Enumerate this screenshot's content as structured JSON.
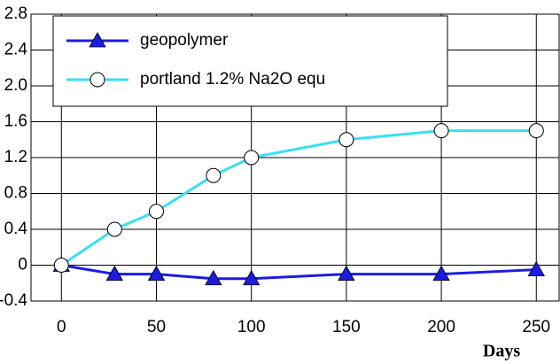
{
  "chart_data": {
    "type": "line",
    "x_label": "Days",
    "x": [
      0,
      28,
      50,
      80,
      100,
      150,
      200,
      250
    ],
    "series": [
      {
        "name": "geopolymer",
        "color": "#1c1ce0",
        "marker": "triangle",
        "values": [
          0,
          -0.1,
          -0.1,
          -0.15,
          -0.15,
          -0.1,
          -0.1,
          -0.05
        ]
      },
      {
        "name": "portland 1.2% Na2O equ",
        "color": "#38e0f0",
        "marker": "circle",
        "values": [
          0,
          0.4,
          0.6,
          1.0,
          1.2,
          1.4,
          1.5,
          1.5
        ]
      }
    ],
    "xlim": [
      -16,
      262
    ],
    "xticks": [
      0,
      50,
      100,
      150,
      200,
      250
    ],
    "ylim": [
      -0.4,
      2.8
    ],
    "yticks": [
      -0.4,
      0,
      0.4,
      0.8,
      1.2,
      1.6,
      {
        "value": 2,
        "label": "2.0"
      },
      2.4,
      2.8
    ],
    "grid": true,
    "legend": "upper left"
  }
}
